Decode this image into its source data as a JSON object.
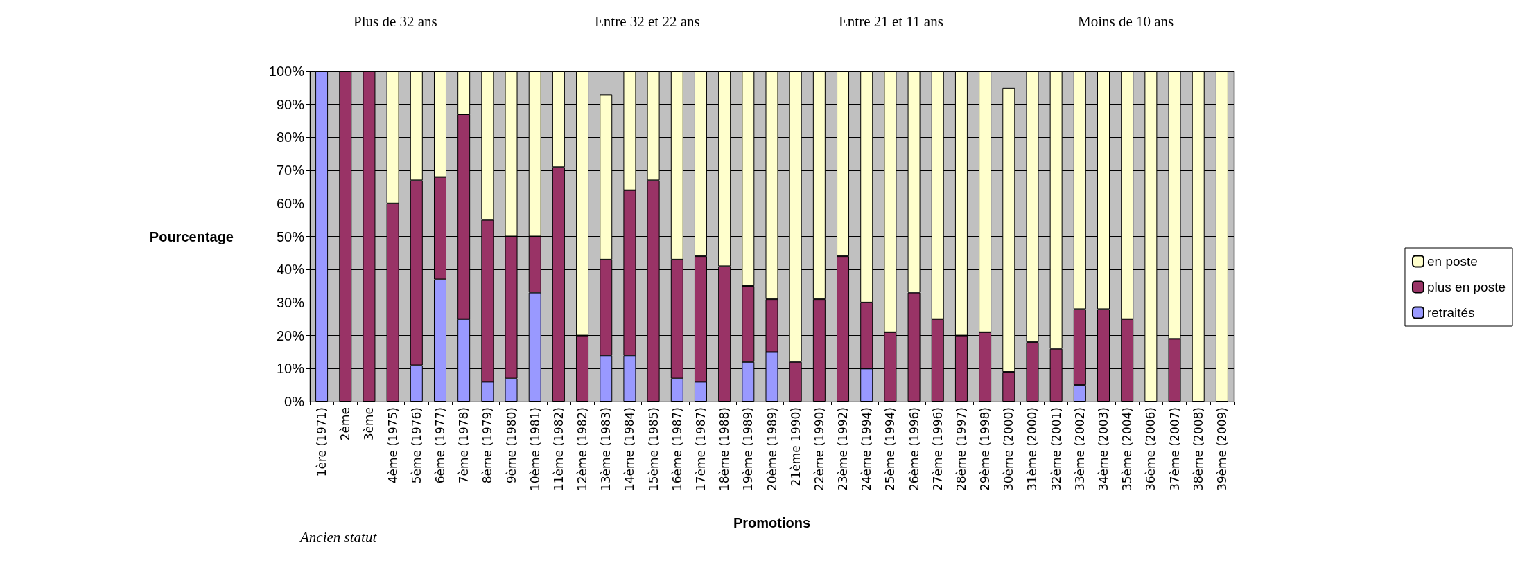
{
  "chart_data": {
    "type": "bar",
    "stacked": true,
    "xlabel": "Promotions",
    "ylabel": "Pourcentage",
    "categories": [
      "1ère (1971)",
      "2ème",
      "3ème",
      "4ème (1975)",
      "5ème (1976)",
      "6ème (1977)",
      "7ème (1978)",
      "8ème (1979)",
      "9ème (1980)",
      "10ème (1981)",
      "11ème (1982)",
      "12ème (1982)",
      "13ème (1983)",
      "14ème (1984)",
      "15ème (1985)",
      "16ème (1987)",
      "17ème (1987)",
      "18ème (1988)",
      "19ème (1989)",
      "20ème (1989)",
      "21ème 1990)",
      "22ème (1990)",
      "23ème (1992)",
      "24ème (1994)",
      "25ème (1994)",
      "26ème (1996)",
      "27ème (1996)",
      "28ème (1997)",
      "29ème (1998)",
      "30ème (2000)",
      "31ème (2000)",
      "32ème (2001)",
      "33ème (2002)",
      "34ème (2003)",
      "35ème (2004)",
      "36ème (2006)",
      "37ème (2007)",
      "38ème (2008)",
      "39ème (2009)"
    ],
    "series": [
      {
        "name": "retraités",
        "color": "#9999ff",
        "values": [
          100,
          0,
          0,
          0,
          11,
          37,
          25,
          6,
          7,
          33,
          0,
          0,
          14,
          14,
          0,
          7,
          6,
          0,
          12,
          15,
          0,
          0,
          0,
          10,
          0,
          0,
          0,
          0,
          0,
          0,
          0,
          0,
          5,
          0,
          0,
          0,
          0,
          0,
          0
        ]
      },
      {
        "name": "plus en poste",
        "color": "#993366",
        "values": [
          0,
          100,
          100,
          60,
          56,
          31,
          62,
          49,
          43,
          17,
          71,
          20,
          29,
          50,
          67,
          36,
          38,
          41,
          23,
          16,
          12,
          31,
          44,
          20,
          21,
          33,
          25,
          20,
          21,
          9,
          18,
          16,
          23,
          28,
          25,
          0,
          19,
          0,
          0
        ]
      },
      {
        "name": "en poste",
        "color": "#ffffcc",
        "values": [
          0,
          0,
          0,
          40,
          33,
          32,
          13,
          45,
          50,
          50,
          29,
          80,
          50,
          36,
          33,
          57,
          56,
          59,
          65,
          69,
          88,
          69,
          56,
          70,
          79,
          67,
          75,
          80,
          79,
          86,
          82,
          84,
          72,
          72,
          75,
          100,
          81,
          100,
          100
        ]
      }
    ],
    "ylim": [
      0,
      100
    ],
    "yticks": [
      {
        "value": 0,
        "label": "0%"
      },
      {
        "value": 10,
        "label": "10%"
      },
      {
        "value": 20,
        "label": "20%"
      },
      {
        "value": 30,
        "label": "30%"
      },
      {
        "value": 40,
        "label": "40%"
      },
      {
        "value": 50,
        "label": "50%"
      },
      {
        "value": 60,
        "label": "60%"
      },
      {
        "value": 70,
        "label": "70%"
      },
      {
        "value": 80,
        "label": "80%"
      },
      {
        "value": 90,
        "label": "90%"
      },
      {
        "value": 100,
        "label": "100%"
      }
    ],
    "grid": "y",
    "legend": "right",
    "annotations": [
      "Plus de 32 ans",
      "Entre 32 et 22 ans",
      "Entre 21 et 11 ans",
      "Moins de 10 ans",
      "Ancien statut"
    ]
  }
}
